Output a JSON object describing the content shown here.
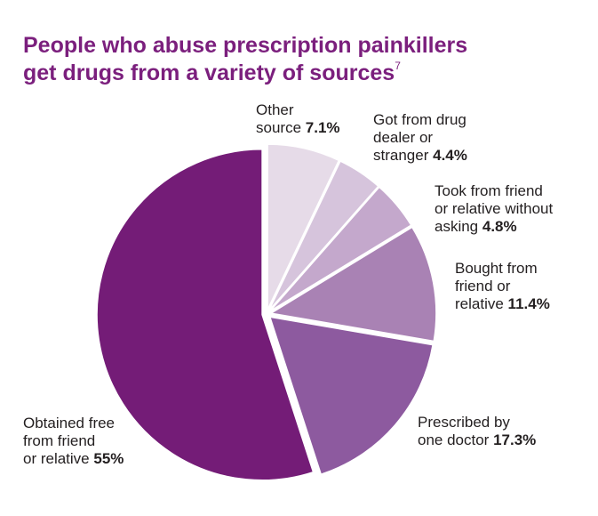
{
  "title": {
    "line1": "People who abuse prescription painkillers",
    "line2": "get drugs from a variety of sources",
    "footnote": "7"
  },
  "colors": {
    "title": "#7b1f7d",
    "text": "#231f20"
  },
  "chart_data": {
    "type": "pie",
    "title": "People who abuse prescription painkillers get drugs from a variety of sources",
    "slices": [
      {
        "label": "Other source",
        "value": 7.1,
        "display": "7.1%",
        "color": "#e6dbe8"
      },
      {
        "label": "Got from drug dealer or stranger",
        "value": 4.4,
        "display": "4.4%",
        "color": "#d6c4dc"
      },
      {
        "label": "Took from friend or relative without asking",
        "value": 4.8,
        "display": "4.8%",
        "color": "#c4a8cc"
      },
      {
        "label": "Bought from friend or relative",
        "value": 11.4,
        "display": "11.4%",
        "color": "#a982b4"
      },
      {
        "label": "Prescribed by one doctor",
        "value": 17.3,
        "display": "17.3%",
        "color": "#8d5a9f"
      },
      {
        "label": "Obtained free from friend or relative",
        "value": 55,
        "display": "55%",
        "color": "#741c77"
      }
    ],
    "start": "12 o'clock",
    "direction": "clockwise",
    "exploded": true
  },
  "labels": [
    {
      "lines": [
        "Other",
        "source"
      ],
      "value": "7.1%"
    },
    {
      "lines": [
        "Got from drug",
        "dealer or",
        "stranger"
      ],
      "value": "4.4%"
    },
    {
      "lines": [
        "Took from friend",
        "or relative without",
        "asking"
      ],
      "value": "4.8%"
    },
    {
      "lines": [
        "Bought from",
        "friend or",
        "relative"
      ],
      "value": "11.4%"
    },
    {
      "lines": [
        "Prescribed by",
        "one doctor"
      ],
      "value": "17.3%"
    },
    {
      "lines": [
        "Obtained free",
        "from friend",
        "or relative"
      ],
      "value": "55%"
    }
  ]
}
